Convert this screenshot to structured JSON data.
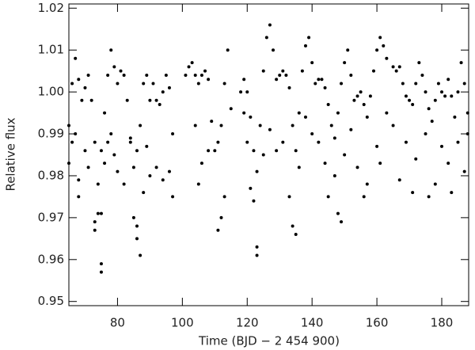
{
  "chart_data": {
    "type": "scatter",
    "x_label": "Time (BJD − 2 454 900)",
    "y_label": "Relative flux",
    "color": "#000000",
    "xlim": [
      65,
      188.3
    ],
    "ylim": [
      0.949,
      1.021
    ],
    "xticks": [
      80,
      100,
      120,
      140,
      160,
      180
    ],
    "yticks": [
      0.95,
      0.96,
      0.97,
      0.98,
      0.99,
      {
        "value": 1,
        "label": "1.00"
      },
      1.01,
      1.02
    ],
    "x": [
      65,
      66,
      67,
      68,
      69,
      70,
      71,
      72,
      73,
      74,
      75,
      76,
      77,
      78,
      79,
      80,
      81,
      82,
      83,
      84,
      85,
      86,
      87,
      88,
      89,
      90,
      91,
      92,
      93,
      94,
      95,
      96,
      97,
      101,
      102,
      103,
      104,
      105,
      106,
      107,
      108,
      109,
      110,
      111,
      112,
      113,
      114,
      118,
      119,
      120,
      121,
      122,
      123,
      124,
      125,
      126,
      127,
      128,
      129,
      130,
      131,
      132,
      133,
      134,
      135,
      136,
      137,
      138,
      139,
      140,
      141,
      142,
      143,
      144,
      145,
      146,
      147,
      148,
      149,
      150,
      151,
      152,
      153,
      154,
      155,
      156,
      157,
      158,
      159,
      160,
      161,
      162,
      163,
      165,
      166,
      167,
      168,
      169,
      170,
      171,
      172,
      173,
      174,
      175,
      176,
      177,
      178,
      179,
      180,
      181,
      182,
      183,
      184,
      185,
      186,
      187,
      188,
      65,
      66,
      67,
      68,
      68,
      70,
      71,
      73,
      73,
      74,
      75,
      75,
      75,
      76,
      77,
      78,
      79,
      80,
      82,
      84,
      85,
      86,
      86,
      87,
      88,
      89,
      90,
      92,
      94,
      96,
      97,
      104,
      105,
      106,
      108,
      111,
      112,
      113,
      115,
      119,
      120,
      121,
      122,
      123,
      123,
      125,
      127,
      129,
      131,
      133,
      134,
      135,
      136,
      138,
      140,
      142,
      144,
      145,
      147,
      148,
      149,
      150,
      152,
      154,
      156,
      157,
      160,
      161,
      163,
      165,
      167,
      169,
      171,
      172,
      175,
      176,
      178,
      180,
      182,
      183,
      185,
      187,
      188
    ],
    "values": [
      0.992,
      1.002,
      1.008,
      1.003,
      0.998,
      1.001,
      1.004,
      0.998,
      0.988,
      0.978,
      0.986,
      0.995,
      1.004,
      1.01,
      1.006,
      1.002,
      1.005,
      1.004,
      0.998,
      0.989,
      0.982,
      0.986,
      0.992,
      1.002,
      1.004,
      0.998,
      1.002,
      0.998,
      0.997,
      1.0,
      1.004,
      1.001,
      0.99,
      1.004,
      1.006,
      1.007,
      1.004,
      1.002,
      1.004,
      1.005,
      1.003,
      0.993,
      0.986,
      0.988,
      0.992,
      1.002,
      1.01,
      1.0,
      1.003,
      1.0,
      0.994,
      0.986,
      0.981,
      0.992,
      1.005,
      1.013,
      1.016,
      1.01,
      1.003,
      1.004,
      1.005,
      1.004,
      1.001,
      0.992,
      0.986,
      0.995,
      1.005,
      1.011,
      1.013,
      1.007,
      1.002,
      1.003,
      1.003,
      1.001,
      0.997,
      0.992,
      0.989,
      0.995,
      1.002,
      1.007,
      1.01,
      1.004,
      0.998,
      0.999,
      1.0,
      0.997,
      0.994,
      0.999,
      1.005,
      1.01,
      1.013,
      1.011,
      1.008,
      1.006,
      1.005,
      1.006,
      1.002,
      0.999,
      0.998,
      0.997,
      1.002,
      1.007,
      1.004,
      1.0,
      0.996,
      0.993,
      0.998,
      1.002,
      1.0,
      0.999,
      1.003,
      0.999,
      0.994,
      1.0,
      1.007,
      1.002,
      0.995,
      0.983,
      0.988,
      0.99,
      0.979,
      0.975,
      0.986,
      0.982,
      0.969,
      0.967,
      0.971,
      0.959,
      0.957,
      0.971,
      0.983,
      0.988,
      0.99,
      0.985,
      0.981,
      0.978,
      0.988,
      0.97,
      0.968,
      0.965,
      0.961,
      0.976,
      0.987,
      0.98,
      0.982,
      0.979,
      0.981,
      0.975,
      0.992,
      0.978,
      0.983,
      0.986,
      0.967,
      0.97,
      0.975,
      0.996,
      0.995,
      0.988,
      0.977,
      0.974,
      0.963,
      0.961,
      0.985,
      0.991,
      0.986,
      0.988,
      0.975,
      0.968,
      0.966,
      0.982,
      0.994,
      0.99,
      0.988,
      0.983,
      0.975,
      0.98,
      0.971,
      0.969,
      0.985,
      0.991,
      0.982,
      0.975,
      0.978,
      0.987,
      0.983,
      0.995,
      0.992,
      0.979,
      0.988,
      0.976,
      0.984,
      0.99,
      0.975,
      0.978,
      0.987,
      0.983,
      0.976,
      0.988,
      0.981,
      0.99
    ]
  }
}
